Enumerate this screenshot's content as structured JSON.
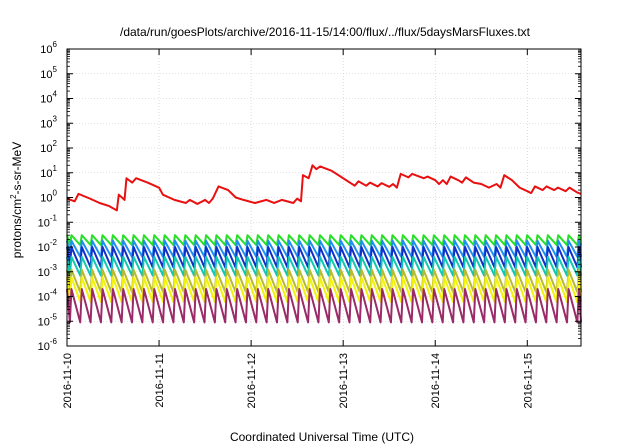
{
  "chart_data": {
    "type": "line",
    "title": "/data/run/goesPlots/archive/2016-11-15/14:00/flux/../flux/5daysMarsFluxes.txt",
    "xlabel": "Coordinated Universal Time (UTC)",
    "ylabel": {
      "base": "protons/cm",
      "sup": "2",
      "rest": "-s-sr-MeV"
    },
    "yscale": "log",
    "ylim_exp": [
      -6,
      6
    ],
    "y_ticks": [
      {
        "base": "10",
        "exp": "-6"
      },
      {
        "base": "10",
        "exp": "-5"
      },
      {
        "base": "10",
        "exp": "-4"
      },
      {
        "base": "10",
        "exp": "-3"
      },
      {
        "base": "10",
        "exp": "-2"
      },
      {
        "base": "10",
        "exp": "-1"
      },
      {
        "base": "10",
        "exp": "0"
      },
      {
        "base": "10",
        "exp": "1"
      },
      {
        "base": "10",
        "exp": "2"
      },
      {
        "base": "10",
        "exp": "3"
      },
      {
        "base": "10",
        "exp": "4"
      },
      {
        "base": "10",
        "exp": "5"
      },
      {
        "base": "10",
        "exp": "6"
      }
    ],
    "x_ticks": [
      "2016-11-10",
      "2016-11-11",
      "2016-11-12",
      "2016-11-13",
      "2016-11-14",
      "2016-11-15"
    ],
    "xlim_days": [
      "2016-11-10",
      "2016-11-15 14:00"
    ],
    "grid": true,
    "legend": "none",
    "sawtooth_rise_fraction": 0.15,
    "series": [
      {
        "color": "#e81010",
        "points": [
          [
            "2016-11-10 00:00",
            0.9
          ],
          [
            "2016-11-10 02:00",
            0.7
          ],
          [
            "2016-11-10 03:00",
            1.4
          ],
          [
            "2016-11-10 06:00",
            0.9
          ],
          [
            "2016-11-10 08:30",
            0.6
          ],
          [
            "2016-11-10 11:00",
            0.45
          ],
          [
            "2016-11-10 13:00",
            0.3
          ],
          [
            "2016-11-10 13:30",
            1.3
          ],
          [
            "2016-11-10 15:00",
            0.8
          ],
          [
            "2016-11-10 15:30",
            6
          ],
          [
            "2016-11-10 17:00",
            4
          ],
          [
            "2016-11-10 18:00",
            6
          ],
          [
            "2016-11-10 21:00",
            4
          ],
          [
            "2016-11-11 00:00",
            2.5
          ],
          [
            "2016-11-11 01:00",
            1.3
          ],
          [
            "2016-11-11 04:00",
            0.8
          ],
          [
            "2016-11-11 07:00",
            0.6
          ],
          [
            "2016-11-11 08:00",
            0.8
          ],
          [
            "2016-11-11 10:00",
            0.55
          ],
          [
            "2016-11-11 12:00",
            0.8
          ],
          [
            "2016-11-11 13:00",
            0.6
          ],
          [
            "2016-11-11 14:00",
            0.9
          ],
          [
            "2016-11-11 15:30",
            2.8
          ],
          [
            "2016-11-11 18:00",
            2
          ],
          [
            "2016-11-11 20:00",
            1
          ],
          [
            "2016-11-11 22:00",
            0.8
          ],
          [
            "2016-11-12 01:00",
            0.6
          ],
          [
            "2016-11-12 04:00",
            0.8
          ],
          [
            "2016-11-12 06:00",
            0.6
          ],
          [
            "2016-11-12 08:00",
            0.8
          ],
          [
            "2016-11-12 11:00",
            0.6
          ],
          [
            "2016-11-12 12:00",
            0.9
          ],
          [
            "2016-11-12 13:00",
            0.7
          ],
          [
            "2016-11-12 13:30",
            8
          ],
          [
            "2016-11-12 15:00",
            6
          ],
          [
            "2016-11-12 16:00",
            20
          ],
          [
            "2016-11-12 17:00",
            14
          ],
          [
            "2016-11-12 18:00",
            18
          ],
          [
            "2016-11-12 21:00",
            12
          ],
          [
            "2016-11-13 00:00",
            6
          ],
          [
            "2016-11-13 03:00",
            3
          ],
          [
            "2016-11-13 04:00",
            4.5
          ],
          [
            "2016-11-13 06:00",
            3
          ],
          [
            "2016-11-13 07:00",
            4
          ],
          [
            "2016-11-13 09:00",
            2.8
          ],
          [
            "2016-11-13 10:00",
            3.8
          ],
          [
            "2016-11-13 12:00",
            2.7
          ],
          [
            "2016-11-13 13:00",
            3.5
          ],
          [
            "2016-11-13 14:00",
            2.5
          ],
          [
            "2016-11-13 15:00",
            9
          ],
          [
            "2016-11-13 17:00",
            6.5
          ],
          [
            "2016-11-13 18:00",
            9
          ],
          [
            "2016-11-13 21:00",
            6
          ],
          [
            "2016-11-13 22:00",
            7
          ],
          [
            "2016-11-14 00:00",
            5
          ],
          [
            "2016-11-14 01:00",
            3.5
          ],
          [
            "2016-11-14 02:00",
            5
          ],
          [
            "2016-11-14 03:00",
            3.5
          ],
          [
            "2016-11-14 04:00",
            7
          ],
          [
            "2016-11-14 06:00",
            5
          ],
          [
            "2016-11-14 07:00",
            4
          ],
          [
            "2016-11-14 08:00",
            6.5
          ],
          [
            "2016-11-14 10:00",
            4
          ],
          [
            "2016-11-14 12:00",
            3.5
          ],
          [
            "2016-11-14 14:00",
            2.5
          ],
          [
            "2016-11-14 16:00",
            3.5
          ],
          [
            "2016-11-14 17:00",
            2.5
          ],
          [
            "2016-11-14 18:00",
            8
          ],
          [
            "2016-11-14 20:00",
            5
          ],
          [
            "2016-11-14 22:00",
            2.5
          ],
          [
            "2016-11-15 00:00",
            1.8
          ],
          [
            "2016-11-15 01:00",
            1.5
          ],
          [
            "2016-11-15 02:00",
            2.8
          ],
          [
            "2016-11-15 04:00",
            2
          ],
          [
            "2016-11-15 05:00",
            2.8
          ],
          [
            "2016-11-15 07:00",
            2
          ],
          [
            "2016-11-15 08:00",
            2.5
          ],
          [
            "2016-11-15 10:00",
            1.8
          ],
          [
            "2016-11-15 11:00",
            2.5
          ],
          [
            "2016-11-15 13:00",
            1.6
          ],
          [
            "2016-11-15 14:00",
            1.4
          ]
        ]
      },
      {
        "color": "#28e028",
        "cycle_start": "2016-11-10 00:45",
        "cycle_hours": 2.7,
        "peak": 0.03,
        "trough": 0.012
      },
      {
        "color": "#1f90f0",
        "cycle_start": "2016-11-10 00:45",
        "cycle_hours": 2.7,
        "peak": 0.018,
        "trough": 0.004
      },
      {
        "color": "#1030c8",
        "cycle_start": "2016-11-10 00:45",
        "cycle_hours": 2.7,
        "peak": 0.01,
        "trough": 0.0015
      },
      {
        "color": "#10c8b0",
        "cycle_start": "2016-11-10 00:45",
        "cycle_hours": 2.7,
        "peak": 0.004,
        "trough": 0.0007
      },
      {
        "color": "#b8ba30",
        "cycle_start": "2016-11-10 00:45",
        "cycle_hours": 2.7,
        "peak": 0.0012,
        "trough": 0.00015
      },
      {
        "color": "#f2f20a",
        "cycle_start": "2016-11-10 00:45",
        "cycle_hours": 2.7,
        "peak": 0.0006,
        "trough": 6e-05
      },
      {
        "color": "#9a2a68",
        "cycle_start": "2016-11-10 00:45",
        "cycle_hours": 2.7,
        "peak": 0.0002,
        "trough": 9e-06
      }
    ]
  }
}
